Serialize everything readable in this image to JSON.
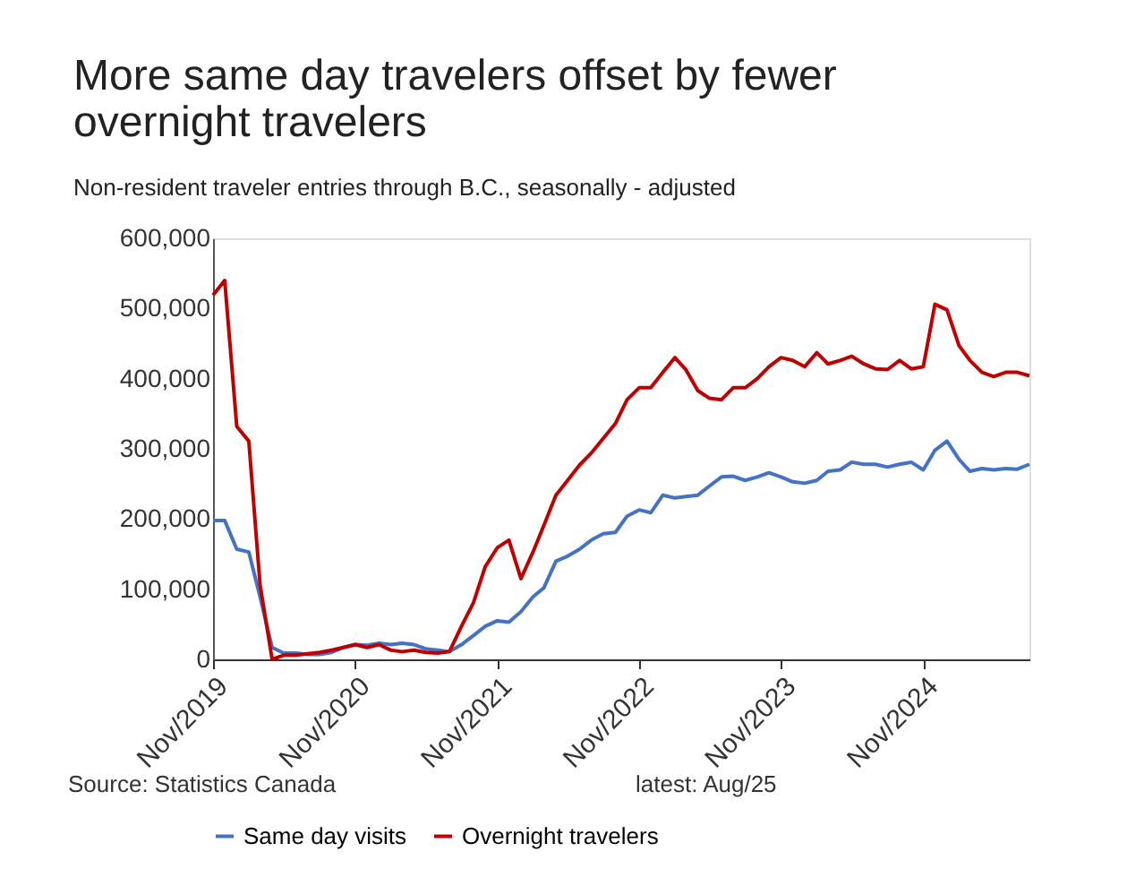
{
  "chart_data": {
    "type": "line",
    "title": "More same day travelers offset by fewer overnight travelers",
    "subtitle": "Non-resident traveler entries through B.C., seasonally - adjusted",
    "x": [
      "2019-11",
      "2019-12",
      "2020-01",
      "2020-02",
      "2020-03",
      "2020-04",
      "2020-05",
      "2020-06",
      "2020-07",
      "2020-08",
      "2020-09",
      "2020-10",
      "2020-11",
      "2020-12",
      "2021-01",
      "2021-02",
      "2021-03",
      "2021-04",
      "2021-05",
      "2021-06",
      "2021-07",
      "2021-08",
      "2021-09",
      "2021-10",
      "2021-11",
      "2021-12",
      "2022-01",
      "2022-02",
      "2022-03",
      "2022-04",
      "2022-05",
      "2022-06",
      "2022-07",
      "2022-08",
      "2022-09",
      "2022-10",
      "2022-11",
      "2022-12",
      "2023-01",
      "2023-02",
      "2023-03",
      "2023-04",
      "2023-05",
      "2023-06",
      "2023-07",
      "2023-08",
      "2023-09",
      "2023-10",
      "2023-11",
      "2023-12",
      "2024-01",
      "2024-02",
      "2024-03",
      "2024-04",
      "2024-05",
      "2024-06",
      "2024-07",
      "2024-08",
      "2024-09",
      "2024-10",
      "2024-11",
      "2024-12",
      "2025-01",
      "2025-02",
      "2025-03",
      "2025-04",
      "2025-05",
      "2025-06",
      "2025-07",
      "2025-08"
    ],
    "series": [
      {
        "name": "Same day visits",
        "color": "#4472c4",
        "values": [
          198000,
          198000,
          157000,
          153000,
          89000,
          17000,
          9000,
          9000,
          7000,
          7000,
          10000,
          17000,
          21000,
          20000,
          23000,
          21000,
          23000,
          21000,
          15000,
          13000,
          11000,
          21000,
          34000,
          47000,
          55000,
          53000,
          68000,
          89000,
          102000,
          140000,
          147000,
          157000,
          170000,
          179000,
          181000,
          204000,
          213000,
          209000,
          234000,
          230000,
          232000,
          234000,
          247000,
          260000,
          261000,
          255000,
          260000,
          266000,
          260000,
          253000,
          251000,
          255000,
          268000,
          270000,
          281000,
          278000,
          278000,
          274000,
          278000,
          281000,
          270000,
          298000,
          311000,
          285000,
          268000,
          272000,
          270000,
          272000,
          271000,
          278000
        ]
      },
      {
        "name": "Overnight travelers",
        "color": "#c00000",
        "values": [
          519000,
          540000,
          332000,
          311000,
          106000,
          0,
          6000,
          6000,
          8000,
          10000,
          13000,
          17000,
          21000,
          17000,
          21000,
          13000,
          11000,
          13000,
          10000,
          9000,
          11000,
          47000,
          81000,
          132000,
          159000,
          170000,
          115000,
          153000,
          191000,
          234000,
          255000,
          277000,
          294000,
          315000,
          336000,
          370000,
          387000,
          387000,
          409000,
          430000,
          413000,
          383000,
          372000,
          370000,
          387000,
          387000,
          400000,
          417000,
          430000,
          426000,
          417000,
          437000,
          421000,
          426000,
          432000,
          421000,
          414000,
          413000,
          426000,
          414000,
          417000,
          506000,
          498000,
          447000,
          426000,
          409000,
          403000,
          409000,
          409000,
          404000
        ]
      }
    ],
    "xlim": [
      "2019-11",
      "2025-08"
    ],
    "xticks": [
      {
        "value": "2019-11",
        "label": "Nov/2019"
      },
      {
        "value": "2020-11",
        "label": "Nov/2020"
      },
      {
        "value": "2021-11",
        "label": "Nov/2021"
      },
      {
        "value": "2022-11",
        "label": "Nov/2022"
      },
      {
        "value": "2023-11",
        "label": "Nov/2023"
      },
      {
        "value": "2024-11",
        "label": "Nov/2024"
      }
    ],
    "ylim": [
      0,
      600000
    ],
    "yticks": [
      0,
      {
        "value": 100000,
        "label": "100,000"
      },
      {
        "value": 200000,
        "label": "200,000"
      },
      {
        "value": 300000,
        "label": "300,000"
      },
      {
        "value": 400000,
        "label": "400,000"
      },
      {
        "value": 500000,
        "label": "500,000"
      },
      {
        "value": 600000,
        "label": "600,000"
      }
    ],
    "grid": false,
    "legend": "bottom",
    "marker": "none",
    "line_style": "solid",
    "annotations": [
      "Source: Statistics Canada",
      "latest: Aug/25"
    ]
  }
}
